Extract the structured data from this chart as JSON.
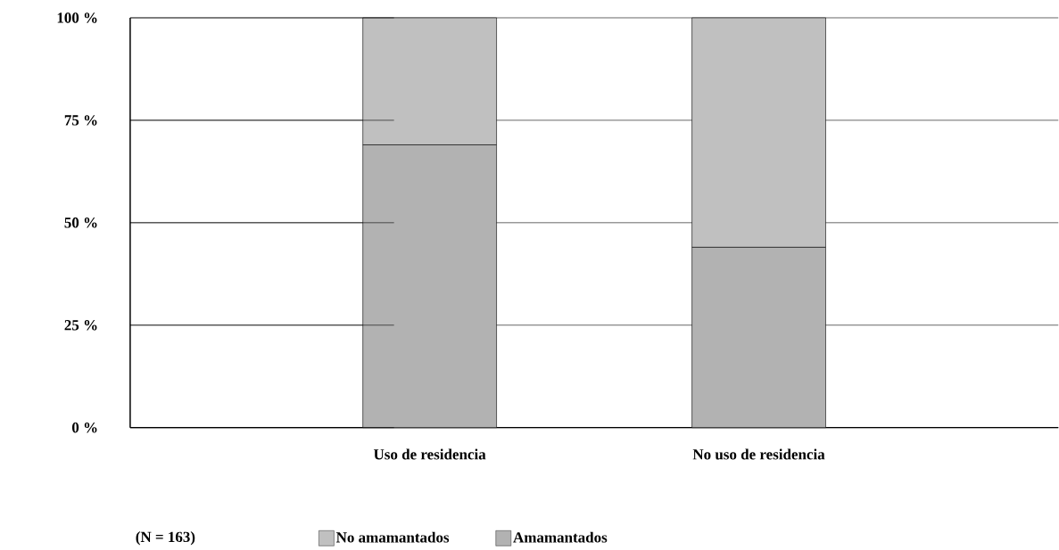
{
  "chart_data": {
    "type": "bar",
    "stacked": true,
    "categories": [
      "Uso de residencia",
      "No uso de residencia"
    ],
    "series": [
      {
        "name": "Amamantados",
        "color": "#b2b2b2",
        "values": [
          69,
          44
        ]
      },
      {
        "name": "No amamantados",
        "color": "#c0c0c0",
        "values": [
          31,
          56
        ]
      }
    ],
    "ylim": [
      0,
      100
    ],
    "yticks": [
      {
        "value": 0,
        "label": "0 %"
      },
      {
        "value": 25,
        "label": "25 %"
      },
      {
        "value": 50,
        "label": "50 %"
      },
      {
        "value": 75,
        "label": "75 %"
      },
      {
        "value": 100,
        "label": "100 %"
      }
    ],
    "grid": "y",
    "legend": "bottom",
    "annotations": [
      "(N = 163)"
    ]
  }
}
